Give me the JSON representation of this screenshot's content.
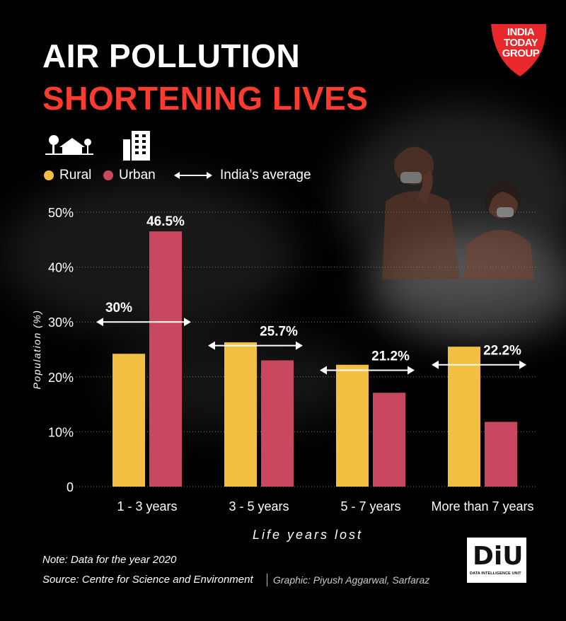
{
  "header": {
    "title_line1": "AIR POLLUTION",
    "title_line2": "SHORTENING LIVES"
  },
  "brand": {
    "logo_text": "INDIA TODAY GROUP",
    "diu_mark": "DiU",
    "diu_subtitle": "DATA INTELLIGENCE UNIT"
  },
  "legend": {
    "rural": "Rural",
    "urban": "Urban",
    "average": "India’s average",
    "icons": [
      "rural-house-icon",
      "urban-building-icon"
    ]
  },
  "colors": {
    "rural": "#f3bf43",
    "urban": "#c9485f",
    "title_accent": "#ff3b2f",
    "logo_red": "#e8282b"
  },
  "footer": {
    "note": "Note: Data for the year 2020",
    "source": "Source: Centre for Science and Environment",
    "graphic": "Graphic: Piyush Aggarwal, Sarfaraz"
  },
  "chart_data": {
    "type": "bar",
    "ylabel": "Population (%)",
    "xlabel": "Life years lost",
    "ylim": [
      0,
      50
    ],
    "yticks": [
      "0",
      "10%",
      "20%",
      "30%",
      "40%",
      "50%"
    ],
    "grid": true,
    "categories": [
      "1 - 3 years",
      "3 - 5 years",
      "5 - 7 years",
      "More than 7 years"
    ],
    "series": [
      {
        "name": "Rural",
        "values": [
          24.2,
          26.3,
          22.2,
          25.5
        ]
      },
      {
        "name": "Urban",
        "values": [
          46.5,
          23.0,
          17.1,
          11.8
        ]
      }
    ],
    "bar_labels": [
      "46.5%",
      "",
      "",
      ""
    ],
    "average": {
      "name": "India’s average",
      "values": [
        30,
        25.7,
        21.2,
        22.2
      ],
      "labels": [
        "30%",
        "25.7%",
        "21.2%",
        "22.2%"
      ]
    }
  }
}
